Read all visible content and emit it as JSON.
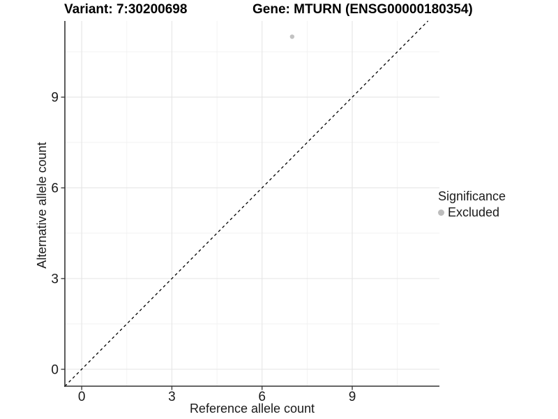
{
  "chart": {
    "title_variant": "Variant: 7:30200698",
    "title_gene": "Gene: MTURN (ENSG00000180354)",
    "xlabel": "Reference allele count",
    "ylabel": "Alternative allele count"
  },
  "legend": {
    "title": "Significance",
    "entries": [
      {
        "label": "Excluded",
        "color": "#bdbdbd"
      }
    ]
  },
  "colors": {
    "grid_major": "#e5e5e5",
    "grid_minor": "#f2f2f2",
    "axis": "#333333",
    "tick_label": "#1a1a1a",
    "identity_line": "#000000",
    "point": "#c2c2c2"
  },
  "chart_data": {
    "type": "scatter",
    "title": "Variant: 7:30200698 — Gene: MTURN (ENSG00000180354)",
    "xlabel": "Reference allele count",
    "ylabel": "Alternative allele count",
    "x_ticks": [
      0,
      3,
      6,
      9
    ],
    "y_ticks": [
      0,
      3,
      6,
      9
    ],
    "x_minor_ticks": [
      1.5,
      4.5,
      7.5,
      10.5
    ],
    "y_minor_ticks": [
      1.5,
      4.5,
      7.5,
      10.5
    ],
    "xlim": [
      -0.56,
      11.9
    ],
    "ylim": [
      -0.56,
      11.52
    ],
    "grid": true,
    "legend_position": "right",
    "series": [
      {
        "name": "Excluded",
        "color": "#c2c2c2",
        "points": [
          {
            "x": 7,
            "y": 11
          }
        ]
      }
    ],
    "reference_line": {
      "kind": "identity y=x",
      "style": "dashed",
      "color": "#000000"
    }
  }
}
